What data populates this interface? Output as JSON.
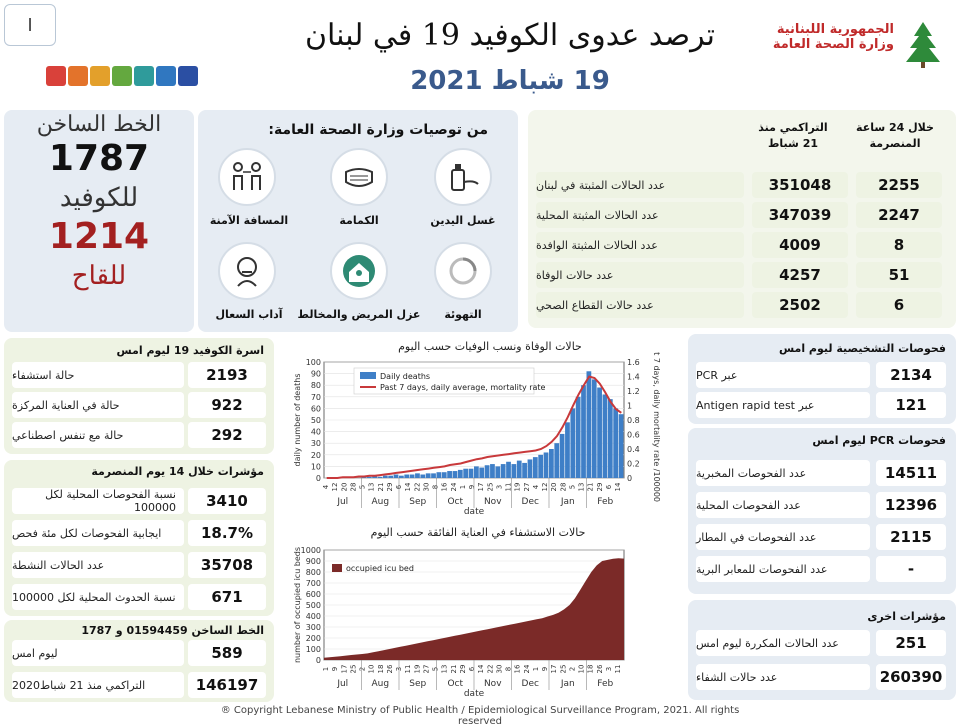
{
  "header": {
    "page_num": "I",
    "title": "ترصد عدوى الكوفيد 19 في لبنان",
    "date": "19 شباط 2021",
    "ministry_line1": "الجمهورية اللبنانية",
    "ministry_line2": "وزارة الصحة العامة"
  },
  "hotline": {
    "line1": "الخط الساخن",
    "covid_num": "1787",
    "line2": "للكوفيد",
    "vaccine_num": "1214",
    "line3": "للقاح"
  },
  "recommendations": {
    "title": "من توصيات وزارة الصحة العامة:",
    "items": [
      {
        "label": "غسل اليدين",
        "icon": "handwash-icon"
      },
      {
        "label": "الكمامة",
        "icon": "mask-icon"
      },
      {
        "label": "المسافة الآمنة",
        "icon": "distance-icon"
      },
      {
        "label": "التهوئة",
        "icon": "ventilation-icon"
      },
      {
        "label": "عزل المريض والمخالط",
        "icon": "isolation-icon"
      },
      {
        "label": "آداب السعال",
        "icon": "cough-icon"
      }
    ]
  },
  "stats": {
    "col_24h": "خلال 24 ساعة المنصرمة",
    "col_cum": "التراكمي منذ 21 شباط",
    "rows": [
      {
        "label": "عدد الحالات المثبتة في لبنان",
        "cum": "351048",
        "day": "2255"
      },
      {
        "label": "عدد الحالات المثبتة المحلية",
        "cum": "347039",
        "day": "2247"
      },
      {
        "label": "عدد الحالات المثبتة الوافدة",
        "cum": "4009",
        "day": "8"
      },
      {
        "label": "عدد حالات الوفاة",
        "cum": "4257",
        "day": "51"
      },
      {
        "label": "عدد حالات القطاع الصحي",
        "cum": "2502",
        "day": "6"
      }
    ]
  },
  "beds": {
    "title": "اسرة الكوفيد 19 ليوم امس",
    "rows": [
      {
        "label": "حالة استشفاء",
        "value": "2193"
      },
      {
        "label": "حالة في العناية المركزة",
        "value": "922"
      },
      {
        "label": "حالة مع تنفس اصطناعي",
        "value": "292"
      }
    ]
  },
  "indicators14": {
    "title": "مؤشرات خلال 14 يوم المنصرمة",
    "rows": [
      {
        "label": "نسبة الفحوصات المحلية لكل 100000",
        "value": "3410"
      },
      {
        "label": "ايجابية الفحوصات لكل مئة فحص",
        "value": "18.7%"
      },
      {
        "label": "عدد الحالات النشطة",
        "value": "35708"
      },
      {
        "label": "نسبة الحدوث المحلية لكل 100000",
        "value": "671"
      }
    ]
  },
  "hotline_calls": {
    "title": "الخط الساخن 01594459 و 1787",
    "rows": [
      {
        "label": "ليوم امس",
        "value": "589"
      },
      {
        "label": "التراكمي منذ 21 شباط2020",
        "value": "146197"
      }
    ]
  },
  "diag_tests": {
    "title": "فحوصات التشخيصية ليوم امس",
    "rows": [
      {
        "label": "عبر PCR",
        "value": "2134"
      },
      {
        "label": "عبر Antigen rapid test",
        "value": "121"
      }
    ]
  },
  "pcr_tests": {
    "title": "فحوصات PCR ليوم امس",
    "rows": [
      {
        "label": "عدد الفحوصات المخبرية",
        "value": "14511"
      },
      {
        "label": "عدد الفحوصات المحلية",
        "value": "12396"
      },
      {
        "label": "عدد الفحوصات في المطار",
        "value": "2115"
      },
      {
        "label": "عدد الفحوصات للمعابر البرية",
        "value": "-"
      }
    ]
  },
  "other": {
    "title": "مؤشرات اخرى",
    "rows": [
      {
        "label": "عدد الحالات المكررة ليوم امس",
        "value": "251"
      },
      {
        "label": "عدد حالات الشفاء",
        "value": "260390"
      }
    ]
  },
  "chart1": {
    "title": "حالات الوفاة ونسب الوفيات حسب اليوم",
    "legend1": "Daily deaths",
    "legend2": "Past 7 days, daily average, mortality rate",
    "ylabel": "daily number of deaths",
    "y2label": "past 7 days, daily mortality rate /100000",
    "xlabel": "date",
    "yticks": [
      "0",
      "10",
      "20",
      "30",
      "40",
      "50",
      "60",
      "70",
      "80",
      "90",
      "100"
    ],
    "y2ticks": [
      "0",
      "0.2",
      "0.4",
      "0.6",
      "0.8",
      "1",
      "1.2",
      "1.4",
      "1.6"
    ],
    "months": [
      "Jul",
      "Aug",
      "Sep",
      "Oct",
      "Nov",
      "Dec",
      "Jan",
      "Feb"
    ],
    "day_ticks": [
      "4",
      "12",
      "20",
      "28",
      "5",
      "13",
      "21",
      "29",
      "6",
      "14",
      "22",
      "30",
      "8",
      "16",
      "24",
      "1",
      "9",
      "17",
      "25",
      "3",
      "11",
      "19",
      "27",
      "4",
      "12",
      "20",
      "28",
      "5",
      "13",
      "21",
      "29",
      "6",
      "14"
    ]
  },
  "chart2": {
    "title": "حالات الاستشفاء في العناية الفائقة حسب اليوم",
    "legend": "occupied icu bed",
    "ylabel": "number of occupied icu beds",
    "xlabel": "date",
    "yticks": [
      "0",
      "100",
      "200",
      "300",
      "400",
      "500",
      "600",
      "700",
      "800",
      "900",
      "1000"
    ],
    "months": [
      "Jul",
      "Aug",
      "Sep",
      "Oct",
      "Nov",
      "Dec",
      "Jan",
      "Feb"
    ],
    "day_ticks": [
      "1",
      "9",
      "17",
      "25",
      "2",
      "10",
      "18",
      "26",
      "3",
      "11",
      "19",
      "27",
      "5",
      "13",
      "21",
      "29",
      "6",
      "14",
      "22",
      "30",
      "8",
      "16",
      "24",
      "1",
      "9",
      "17",
      "25",
      "2",
      "10",
      "18",
      "26",
      "3",
      "11"
    ]
  },
  "chart_data": [
    {
      "type": "bar",
      "title": "حالات الوفاة ونسب الوفيات حسب اليوم",
      "xlabel": "date",
      "ylabel": "daily number of deaths",
      "ylim": [
        0,
        100
      ],
      "y2lim": [
        0,
        1.6
      ],
      "series": [
        {
          "name": "Daily deaths",
          "values": [
            0,
            0,
            0,
            1,
            0,
            1,
            0,
            1,
            1,
            2,
            1,
            2,
            2,
            3,
            2,
            3,
            3,
            4,
            3,
            4,
            4,
            5,
            5,
            6,
            6,
            7,
            8,
            8,
            10,
            9,
            11,
            12,
            10,
            12,
            14,
            12,
            15,
            13,
            16,
            18,
            20,
            22,
            25,
            30,
            38,
            48,
            60,
            70,
            80,
            92,
            85,
            78,
            72,
            68,
            60,
            55
          ]
        },
        {
          "name": "Past 7 days, daily average, mortality rate",
          "values": [
            0,
            0,
            0,
            0.01,
            0.01,
            0.01,
            0.02,
            0.02,
            0.03,
            0.03,
            0.04,
            0.05,
            0.06,
            0.07,
            0.08,
            0.09,
            0.1,
            0.11,
            0.12,
            0.13,
            0.14,
            0.15,
            0.16,
            0.18,
            0.19,
            0.2,
            0.22,
            0.24,
            0.26,
            0.27,
            0.29,
            0.3,
            0.31,
            0.32,
            0.33,
            0.34,
            0.35,
            0.36,
            0.37,
            0.38,
            0.4,
            0.44,
            0.5,
            0.58,
            0.7,
            0.84,
            1.0,
            1.15,
            1.28,
            1.4,
            1.38,
            1.3,
            1.18,
            1.05,
            0.95,
            0.9
          ]
        }
      ]
    },
    {
      "type": "area",
      "title": "حالات الاستشفاء في العناية الفائقة حسب اليوم",
      "xlabel": "date",
      "ylabel": "number of occupied icu beds",
      "ylim": [
        0,
        1000
      ],
      "series": [
        {
          "name": "occupied icu bed",
          "values": [
            20,
            25,
            30,
            35,
            40,
            45,
            50,
            55,
            60,
            70,
            80,
            90,
            100,
            110,
            120,
            130,
            140,
            150,
            160,
            170,
            180,
            190,
            200,
            210,
            220,
            230,
            240,
            250,
            260,
            270,
            280,
            290,
            300,
            310,
            320,
            330,
            340,
            350,
            360,
            370,
            380,
            395,
            410,
            430,
            460,
            500,
            560,
            640,
            720,
            800,
            860,
            900,
            910,
            920,
            925,
            922
          ]
        }
      ]
    }
  ],
  "footer": "® Copyright Lebanese Ministry of Public Health / Epidemiological Surveillance Program, 2021. All rights reserved",
  "colors": {
    "bar_blue": "#3f7fc7",
    "line_red": "#c8393b",
    "area_maroon": "#7b2a28",
    "accent_green": "#eef3e3",
    "panel_blue": "#e6ecf3"
  }
}
